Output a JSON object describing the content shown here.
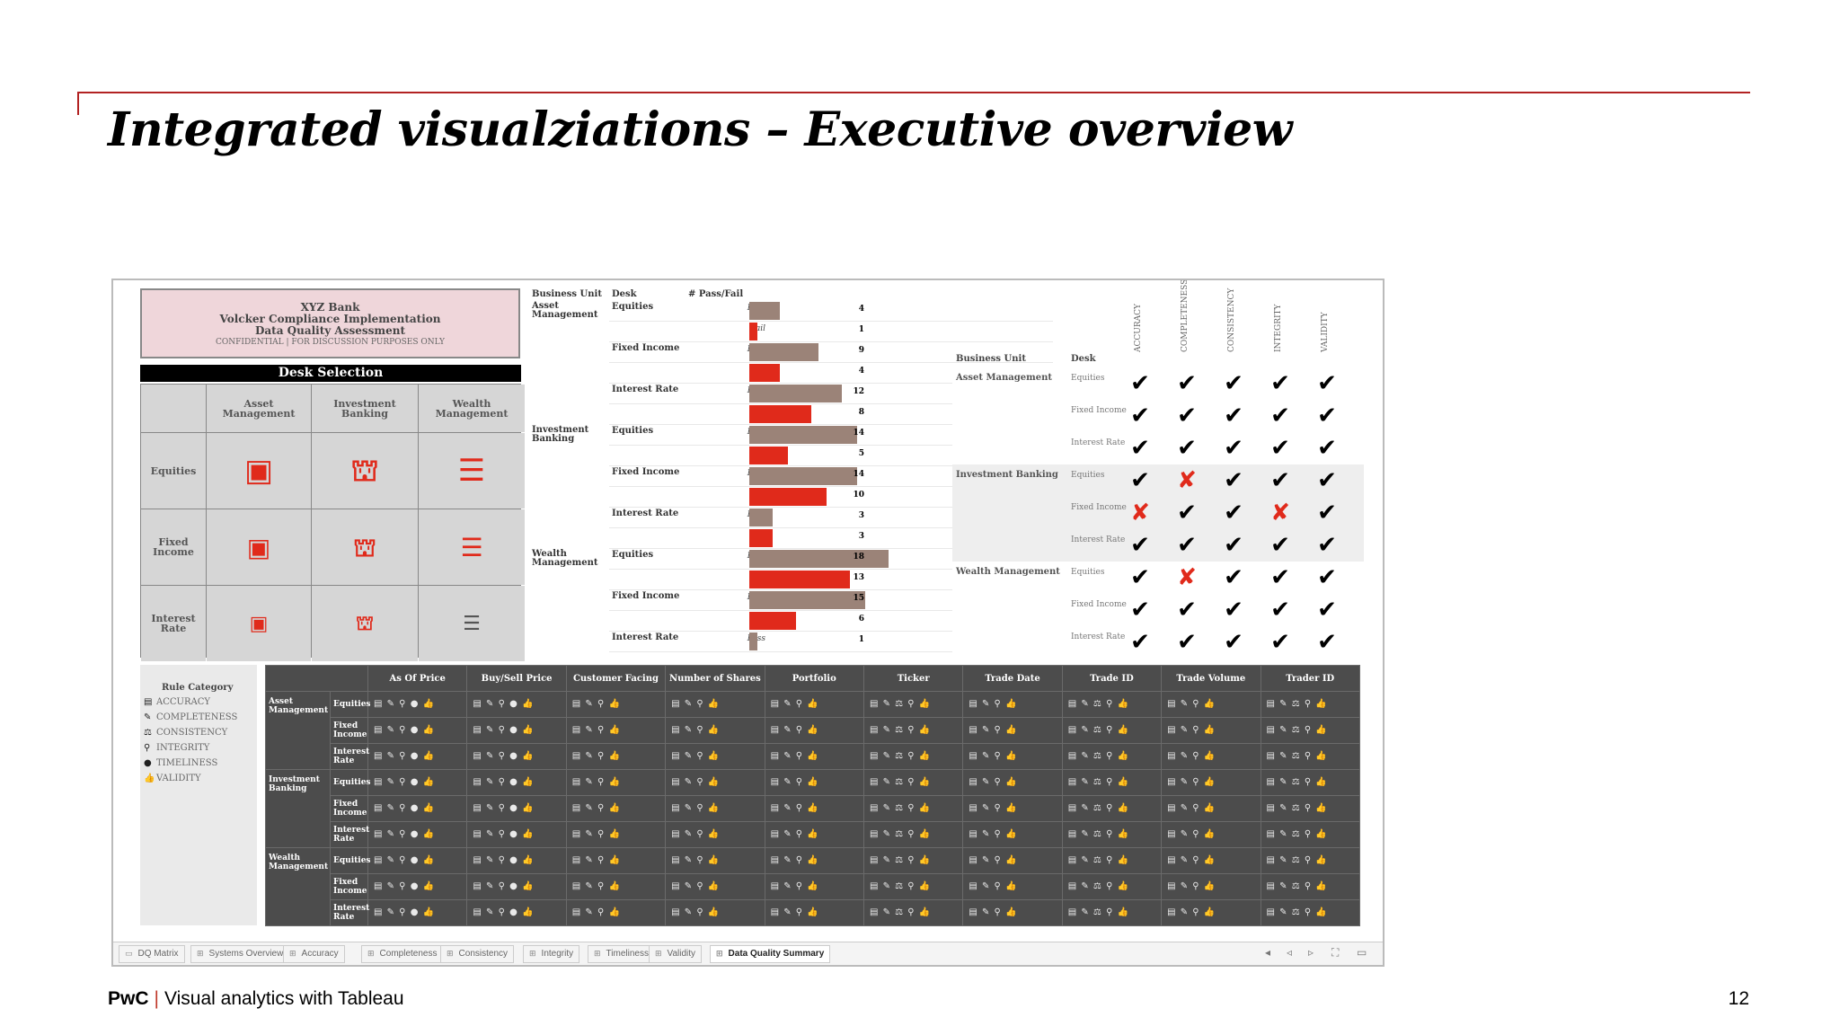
{
  "slide": {
    "title": "Integrated visualziations – Executive overview",
    "footer_brand": "PwC",
    "footer_pipe": "|",
    "footer_text": "Visual analytics with Tableau",
    "page_number": "12"
  },
  "colors": {
    "accent_red": "#e02a1b",
    "pass_bar": "#9b8378",
    "fail_bar": "#e02a1b",
    "header_pink": "#efd6da"
  },
  "header_box": {
    "line1": "XYZ Bank",
    "line2": "Volcker Compliance Implementation",
    "line3": "Data Quality Assessment",
    "line4": "CONFIDENTIAL | FOR DISCUSSION PURPOSES ONLY"
  },
  "desk_selection": {
    "title": "Desk Selection",
    "columns": [
      "Asset Management",
      "Investment Banking",
      "Wealth Management"
    ],
    "rows": [
      "Equities",
      "Fixed Income",
      "Interest Rate"
    ],
    "column_icons": [
      "briefcase-icon",
      "bank-icon",
      "coins-icon"
    ]
  },
  "bar_chart": {
    "headers": {
      "unit": "Business Unit",
      "desk": "Desk",
      "passfail": "# Pass/Fail"
    },
    "pass_label": "Pass",
    "fail_label": "Fail",
    "groups": [
      {
        "unit": "Asset Management",
        "desks": [
          {
            "desk": "Equities",
            "pass": 4,
            "fail": 1
          },
          {
            "desk": "Fixed Income",
            "pass": 9,
            "fail": 4
          },
          {
            "desk": "Interest Rate",
            "pass": 12,
            "fail": 8
          }
        ]
      },
      {
        "unit": "Investment Banking",
        "desks": [
          {
            "desk": "Equities",
            "pass": 14,
            "fail": 5
          },
          {
            "desk": "Fixed Income",
            "pass": 14,
            "fail": 10
          },
          {
            "desk": "Interest Rate",
            "pass": 3,
            "fail": 3
          }
        ]
      },
      {
        "unit": "Wealth Management",
        "desks": [
          {
            "desk": "Equities",
            "pass": 18,
            "fail": 13
          },
          {
            "desk": "Fixed Income",
            "pass": 15,
            "fail": 6
          },
          {
            "desk": "Interest Rate",
            "pass": 1,
            "fail": null
          }
        ]
      }
    ]
  },
  "dq_matrix": {
    "unit_header": "Business Unit",
    "desk_header": "Desk",
    "columns": [
      "ACCURACY",
      "COMPLETENESS",
      "CONSISTENCY",
      "INTEGRITY",
      "VALIDITY"
    ],
    "rows": [
      {
        "unit": "Asset Management",
        "desk": "Equities",
        "marks": [
          "pass",
          "pass",
          "pass",
          "pass",
          "pass"
        ]
      },
      {
        "unit": "",
        "desk": "Fixed Income",
        "marks": [
          "pass",
          "pass",
          "pass",
          "pass",
          "pass"
        ]
      },
      {
        "unit": "",
        "desk": "Interest Rate",
        "marks": [
          "pass",
          "pass",
          "pass",
          "pass",
          "pass"
        ]
      },
      {
        "unit": "Investment Banking",
        "desk": "Equities",
        "marks": [
          "pass",
          "fail",
          "pass",
          "pass",
          "pass"
        ]
      },
      {
        "unit": "",
        "desk": "Fixed Income",
        "marks": [
          "fail",
          "pass",
          "pass",
          "fail",
          "pass"
        ]
      },
      {
        "unit": "",
        "desk": "Interest Rate",
        "marks": [
          "pass",
          "pass",
          "pass",
          "pass",
          "pass"
        ]
      },
      {
        "unit": "Wealth Management",
        "desk": "Equities",
        "marks": [
          "pass",
          "fail",
          "pass",
          "pass",
          "pass"
        ]
      },
      {
        "unit": "",
        "desk": "Fixed Income",
        "marks": [
          "pass",
          "pass",
          "pass",
          "pass",
          "pass"
        ]
      },
      {
        "unit": "",
        "desk": "Interest Rate",
        "marks": [
          "pass",
          "pass",
          "pass",
          "pass",
          "pass"
        ]
      }
    ]
  },
  "legend": {
    "title": "Rule Category",
    "items": [
      {
        "glyph": "▤",
        "label": "ACCURACY"
      },
      {
        "glyph": "✎",
        "label": "COMPLETENESS"
      },
      {
        "glyph": "⚖",
        "label": "CONSISTENCY"
      },
      {
        "glyph": "⚲",
        "label": "INTEGRITY"
      },
      {
        "glyph": "●",
        "label": "TIMELINESS"
      },
      {
        "glyph": "👍",
        "label": "VALIDITY"
      }
    ]
  },
  "detail_table": {
    "columns": [
      "As Of Price",
      "Buy/Sell Price",
      "Customer Facing",
      "Number of Shares",
      "Portfolio",
      "Ticker",
      "Trade Date",
      "Trade ID",
      "Trade Volume",
      "Trader ID"
    ],
    "units": [
      {
        "unit": "Asset Management",
        "desks": [
          "Equities",
          "Fixed Income",
          "Interest Rate"
        ]
      },
      {
        "unit": "Investment Banking",
        "desks": [
          "Equities",
          "Fixed Income",
          "Interest Rate"
        ]
      },
      {
        "unit": "Wealth Management",
        "desks": [
          "Equities",
          "Fixed Income",
          "Interest Rate"
        ]
      }
    ],
    "cell_icons": [
      "▤ ✎ ⚲ ● 👍",
      "▤ ✎ ⚲ ● 👍",
      "▤ ✎ ⚲ 👍",
      "▤ ✎ ⚲ 👍",
      "▤ ✎ ⚲ 👍",
      "▤ ✎ ⚖ ⚲ 👍",
      "▤ ✎ ⚲ 👍",
      "▤ ✎ ⚖ ⚲ 👍",
      "▤ ✎ ⚲ 👍",
      "▤ ✎ ⚖ ⚲ 👍"
    ]
  },
  "tabs": [
    {
      "label": "DQ Matrix",
      "glyph": "▭"
    },
    {
      "label": "Systems Overview",
      "glyph": "⊞"
    },
    {
      "label": "Accuracy",
      "glyph": "⊞"
    },
    {
      "label": "Completeness",
      "glyph": "⊞"
    },
    {
      "label": "Consistency",
      "glyph": "⊞"
    },
    {
      "label": "Integrity",
      "glyph": "⊞"
    },
    {
      "label": "Timeliness",
      "glyph": "⊞"
    },
    {
      "label": "Validity",
      "glyph": "⊞"
    },
    {
      "label": "Data Quality Summary",
      "glyph": "⊞",
      "active": true
    }
  ],
  "nav_controls": [
    "◂",
    "◃",
    "▹",
    "⛶",
    "▭"
  ]
}
